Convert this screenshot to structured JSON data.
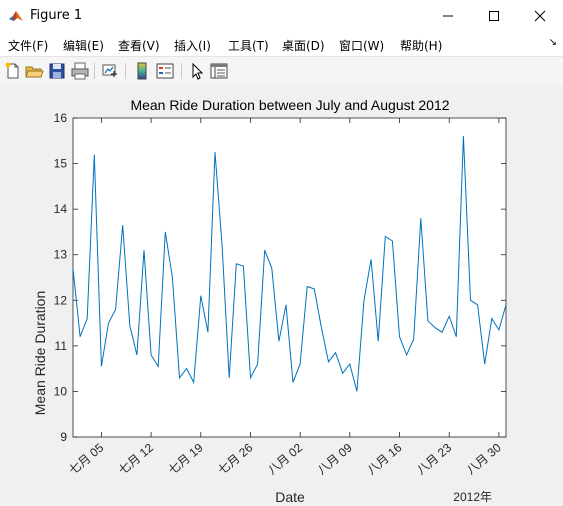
{
  "window": {
    "title": "Figure 1",
    "controls": {
      "minimize": "minimize",
      "maximize": "maximize",
      "close": "close"
    }
  },
  "menu": {
    "items": [
      "文件(F)",
      "编辑(E)",
      "查看(V)",
      "插入(I)",
      "工具(T)",
      "桌面(D)",
      "窗口(W)",
      "帮助(H)"
    ]
  },
  "toolbar": {
    "buttons": [
      "new-figure-icon",
      "open-file-icon",
      "save-icon",
      "print-icon",
      "link-plot-icon",
      "colorbar-icon",
      "legend-icon",
      "pointer-icon",
      "property-editor-icon"
    ]
  },
  "chart_data": {
    "type": "line",
    "title": "Mean Ride Duration between July and August 2012",
    "xlabel": "Date",
    "ylabel": "Mean Ride Duration",
    "x_axis_secondary_label": "2012年",
    "xlim": [
      "2012-07-01",
      "2012-08-31"
    ],
    "ylim": [
      9,
      16
    ],
    "yticks": [
      9,
      10,
      11,
      12,
      13,
      14,
      15,
      16
    ],
    "xticks": [
      {
        "date": "2012-07-05",
        "label": "七月 05"
      },
      {
        "date": "2012-07-12",
        "label": "七月 12"
      },
      {
        "date": "2012-07-19",
        "label": "七月 19"
      },
      {
        "date": "2012-07-26",
        "label": "七月 26"
      },
      {
        "date": "2012-08-02",
        "label": "八月 02"
      },
      {
        "date": "2012-08-09",
        "label": "八月 09"
      },
      {
        "date": "2012-08-16",
        "label": "八月 16"
      },
      {
        "date": "2012-08-23",
        "label": "八月 23"
      },
      {
        "date": "2012-08-30",
        "label": "八月 30"
      }
    ],
    "grid": false,
    "line_color": "#0072BD",
    "series": [
      {
        "x": [
          "2012-07-01",
          "2012-07-02",
          "2012-07-03",
          "2012-07-04",
          "2012-07-05",
          "2012-07-06",
          "2012-07-07",
          "2012-07-08",
          "2012-07-09",
          "2012-07-10",
          "2012-07-11",
          "2012-07-12",
          "2012-07-13",
          "2012-07-14",
          "2012-07-15",
          "2012-07-16",
          "2012-07-17",
          "2012-07-18",
          "2012-07-19",
          "2012-07-20",
          "2012-07-21",
          "2012-07-22",
          "2012-07-23",
          "2012-07-24",
          "2012-07-25",
          "2012-07-26",
          "2012-07-27",
          "2012-07-28",
          "2012-07-29",
          "2012-07-30",
          "2012-07-31",
          "2012-08-01",
          "2012-08-02",
          "2012-08-03",
          "2012-08-04",
          "2012-08-05",
          "2012-08-06",
          "2012-08-07",
          "2012-08-08",
          "2012-08-09",
          "2012-08-10",
          "2012-08-11",
          "2012-08-12",
          "2012-08-13",
          "2012-08-14",
          "2012-08-15",
          "2012-08-16",
          "2012-08-17",
          "2012-08-18",
          "2012-08-19",
          "2012-08-20",
          "2012-08-21",
          "2012-08-22",
          "2012-08-23",
          "2012-08-24",
          "2012-08-25",
          "2012-08-26",
          "2012-08-27",
          "2012-08-28",
          "2012-08-29",
          "2012-08-30",
          "2012-08-31"
        ],
        "values": [
          12.7,
          11.2,
          11.6,
          15.2,
          10.55,
          11.5,
          11.8,
          13.65,
          11.45,
          10.8,
          13.1,
          10.8,
          10.55,
          13.5,
          12.5,
          10.3,
          10.5,
          10.2,
          12.1,
          11.3,
          15.25,
          13.2,
          10.3,
          12.8,
          12.75,
          10.3,
          10.6,
          13.1,
          12.7,
          11.1,
          11.9,
          10.2,
          10.6,
          12.3,
          12.25,
          11.4,
          10.65,
          10.85,
          10.4,
          10.6,
          10.0,
          12.0,
          12.9,
          11.1,
          13.4,
          13.3,
          11.2,
          10.8,
          11.15,
          13.8,
          11.55,
          11.4,
          11.3,
          11.65,
          11.2,
          15.6,
          12.0,
          11.9,
          10.6,
          11.6,
          11.35,
          11.9
        ]
      }
    ]
  }
}
